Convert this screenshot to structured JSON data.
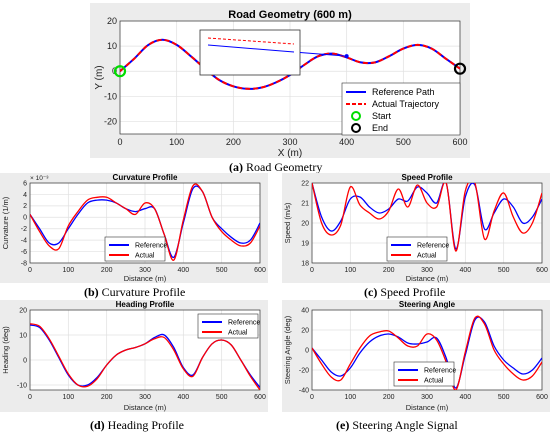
{
  "figure": {
    "captions": {
      "a": {
        "tag": "(a)",
        "text": " Road Geometry"
      },
      "b": {
        "tag": "(b)",
        "text": " Curvature Profile"
      },
      "c": {
        "tag": "(c)",
        "text": " Speed Profile"
      },
      "d": {
        "tag": "(d)",
        "text": " Heading Profile"
      },
      "e": {
        "tag": "(e)",
        "text": " Steering Angle Signal"
      }
    }
  },
  "colors": {
    "reference": "#0000ff",
    "actual": "#ff0000",
    "start": "#00dd00",
    "end": "#000000",
    "figure_bg": "#ececec",
    "axes_bg": "#ffffff",
    "grid": "#e0e0e0"
  },
  "chart_data": [
    {
      "id": "road",
      "type": "line",
      "title": "Road Geometry (600 m)",
      "xlabel": "X (m)",
      "ylabel": "Y (m)",
      "xlim": [
        0,
        600
      ],
      "ylim": [
        -25,
        20
      ],
      "xticks": [
        0,
        100,
        200,
        300,
        400,
        500,
        600
      ],
      "yticks": [
        -20,
        -10,
        0,
        10,
        20
      ],
      "grid": true,
      "legend_position": "bottom-right",
      "legend": [
        "Reference Path",
        "Actual Trajectory",
        "Start",
        "End"
      ],
      "series": [
        {
          "name": "Reference Path",
          "style": "solid",
          "x": [
            0,
            25,
            50,
            75,
            100,
            125,
            150,
            175,
            200,
            225,
            250,
            275,
            300,
            325,
            350,
            375,
            400,
            425,
            450,
            475,
            500,
            525,
            550,
            575,
            600
          ],
          "y": [
            0,
            5,
            10.5,
            12.5,
            10.5,
            6,
            1,
            -3.5,
            -6,
            -7,
            -6.5,
            -4.5,
            -1.5,
            2.5,
            6,
            7,
            5.5,
            3.5,
            3.5,
            6,
            9,
            10.5,
            9,
            5,
            1
          ]
        },
        {
          "name": "Actual Trajectory",
          "style": "dashed",
          "x": [
            0,
            25,
            50,
            75,
            100,
            125,
            150,
            175,
            200,
            225,
            250,
            275,
            300,
            325,
            350,
            375,
            400,
            425,
            450,
            475,
            500,
            525,
            550,
            575,
            600
          ],
          "y": [
            0,
            5,
            10.5,
            12.5,
            10.5,
            6,
            1,
            -3.5,
            -6,
            -7,
            -6.5,
            -4.5,
            -1.5,
            2.5,
            6,
            7,
            5.5,
            3.5,
            3.5,
            6,
            9,
            10.5,
            9,
            5,
            1
          ]
        }
      ],
      "markers": [
        {
          "name": "Start",
          "x": 0,
          "y": 0
        },
        {
          "name": "End",
          "x": 600,
          "y": 1
        }
      ],
      "inset": {
        "note": "zoomed view of a straight segment; reference and actual nearly parallel"
      }
    },
    {
      "id": "curvature",
      "type": "line",
      "title": "Curvature Profile",
      "xlabel": "Distance (m)",
      "ylabel": "Curvature (1/m)",
      "yexponent": "× 10⁻³",
      "xlim": [
        0,
        600
      ],
      "ylim": [
        -8,
        6
      ],
      "xticks": [
        0,
        100,
        200,
        300,
        400,
        500,
        600
      ],
      "yticks": [
        -8,
        -6,
        -4,
        -2,
        0,
        2,
        4,
        6
      ],
      "grid": true,
      "legend_position": "bottom-center",
      "legend": [
        "Reference",
        "Actual"
      ],
      "series": [
        {
          "name": "Reference",
          "x": [
            0,
            25,
            50,
            75,
            100,
            125,
            150,
            175,
            200,
            225,
            250,
            275,
            300,
            325,
            350,
            375,
            400,
            425,
            450,
            475,
            500,
            525,
            550,
            575,
            600
          ],
          "y": [
            0.5,
            -2,
            -4.5,
            -4.5,
            -2,
            0.5,
            2.5,
            3,
            3,
            2.5,
            1.5,
            1,
            1.5,
            1.5,
            -3,
            -7,
            -1,
            5,
            4.5,
            0,
            -2,
            -3.5,
            -4.5,
            -4,
            -1
          ]
        },
        {
          "name": "Actual",
          "x": [
            0,
            25,
            50,
            75,
            100,
            125,
            150,
            175,
            200,
            225,
            250,
            275,
            300,
            325,
            350,
            375,
            400,
            425,
            450,
            475,
            500,
            525,
            550,
            575,
            600
          ],
          "y": [
            0.5,
            -2.5,
            -5,
            -5.5,
            -1.5,
            1,
            3,
            3.5,
            3.5,
            2.5,
            1.5,
            0.5,
            2.5,
            1.5,
            -3,
            -7.5,
            -0.5,
            5.5,
            4.5,
            0,
            -2.5,
            -4,
            -5,
            -4.5,
            -1.5
          ]
        }
      ]
    },
    {
      "id": "speed",
      "type": "line",
      "title": "Speed Profile",
      "xlabel": "Distance (m)",
      "ylabel": "Speed (m/s)",
      "xlim": [
        0,
        600
      ],
      "ylim": [
        18,
        22
      ],
      "xticks": [
        0,
        100,
        200,
        300,
        400,
        500,
        600
      ],
      "yticks": [
        18,
        19,
        20,
        21,
        22
      ],
      "grid": true,
      "legend_position": "bottom-center",
      "legend": [
        "Reference",
        "Actual"
      ],
      "series": [
        {
          "name": "Reference",
          "x": [
            0,
            25,
            50,
            75,
            100,
            125,
            150,
            175,
            200,
            225,
            250,
            275,
            300,
            325,
            350,
            375,
            400,
            425,
            450,
            475,
            500,
            525,
            550,
            575,
            600
          ],
          "y": [
            22,
            20.3,
            19.6,
            20.1,
            21.2,
            21.3,
            20.8,
            20.5,
            20.7,
            21.2,
            21.1,
            21.8,
            21.5,
            21.0,
            22.0,
            18.7,
            21.3,
            21.9,
            19.7,
            20.5,
            21.2,
            20.8,
            20.0,
            20.3,
            21.2
          ]
        },
        {
          "name": "Actual",
          "x": [
            0,
            25,
            50,
            75,
            100,
            125,
            150,
            175,
            200,
            225,
            250,
            275,
            300,
            325,
            350,
            375,
            400,
            425,
            450,
            475,
            500,
            525,
            550,
            575,
            600
          ],
          "y": [
            22,
            20.0,
            19.4,
            19.9,
            21.8,
            20.9,
            20.5,
            20.2,
            20.6,
            21.7,
            20.8,
            21.9,
            21.0,
            20.8,
            22.0,
            18.6,
            21.6,
            22.0,
            19.2,
            20.6,
            21.5,
            20.3,
            19.5,
            20.0,
            21.5
          ]
        }
      ]
    },
    {
      "id": "heading",
      "type": "line",
      "title": "Heading Profile",
      "xlabel": "Distance (m)",
      "ylabel": "Heading (deg)",
      "xlim": [
        0,
        600
      ],
      "ylim": [
        -12,
        20
      ],
      "xticks": [
        0,
        100,
        200,
        300,
        400,
        500,
        600
      ],
      "yticks": [
        -10,
        0,
        10,
        20
      ],
      "grid": true,
      "legend_position": "top-right",
      "legend": [
        "Reference",
        "Actual"
      ],
      "series": [
        {
          "name": "Reference",
          "x": [
            0,
            25,
            50,
            75,
            100,
            125,
            150,
            175,
            200,
            225,
            250,
            275,
            300,
            325,
            350,
            375,
            400,
            425,
            450,
            475,
            500,
            525,
            550,
            575,
            600
          ],
          "y": [
            14,
            13,
            8,
            1,
            -6,
            -10,
            -10,
            -7,
            -2,
            2,
            4,
            5,
            6.5,
            9,
            10,
            5,
            -3,
            -6,
            1,
            6.5,
            8,
            6,
            0,
            -6,
            -11
          ]
        },
        {
          "name": "Actual",
          "x": [
            0,
            25,
            50,
            75,
            100,
            125,
            150,
            175,
            200,
            225,
            250,
            275,
            300,
            325,
            350,
            375,
            400,
            425,
            450,
            475,
            500,
            525,
            550,
            575,
            600
          ],
          "y": [
            14.5,
            13.5,
            8.5,
            1.5,
            -5.5,
            -10,
            -10.5,
            -7.5,
            -2,
            2,
            4,
            5,
            6.5,
            8.5,
            9,
            4,
            -3.5,
            -6.5,
            1,
            6.5,
            8,
            6,
            0,
            -6.5,
            -12
          ]
        }
      ]
    },
    {
      "id": "steering",
      "type": "line",
      "title": "Steering Angle",
      "xlabel": "Distance (m)",
      "ylabel": "Steering Angle (deg)",
      "xlim": [
        0,
        600
      ],
      "ylim": [
        -40,
        40
      ],
      "xticks": [
        0,
        100,
        200,
        300,
        400,
        500,
        600
      ],
      "yticks": [
        -40,
        -20,
        0,
        20,
        40
      ],
      "grid": true,
      "legend_position": "bottom-center",
      "legend": [
        "Reference",
        "Actual"
      ],
      "series": [
        {
          "name": "Reference",
          "x": [
            0,
            25,
            50,
            75,
            100,
            125,
            150,
            175,
            200,
            225,
            250,
            275,
            300,
            325,
            350,
            375,
            400,
            425,
            450,
            475,
            500,
            525,
            550,
            575,
            600
          ],
          "y": [
            2,
            -10,
            -22,
            -26,
            -18,
            -3,
            8,
            14,
            16,
            13,
            7,
            6,
            8,
            12,
            -8,
            -38,
            -5,
            30,
            28,
            4,
            -10,
            -18,
            -24,
            -20,
            -8
          ]
        },
        {
          "name": "Actual",
          "x": [
            0,
            25,
            50,
            75,
            100,
            125,
            150,
            175,
            200,
            225,
            250,
            275,
            300,
            325,
            350,
            375,
            400,
            425,
            450,
            475,
            500,
            525,
            550,
            575,
            600
          ],
          "y": [
            2,
            -14,
            -27,
            -30,
            -14,
            2,
            14,
            18,
            19,
            12,
            4,
            4,
            16,
            10,
            -12,
            -40,
            -2,
            32,
            26,
            0,
            -14,
            -24,
            -30,
            -26,
            -12
          ]
        }
      ]
    }
  ]
}
